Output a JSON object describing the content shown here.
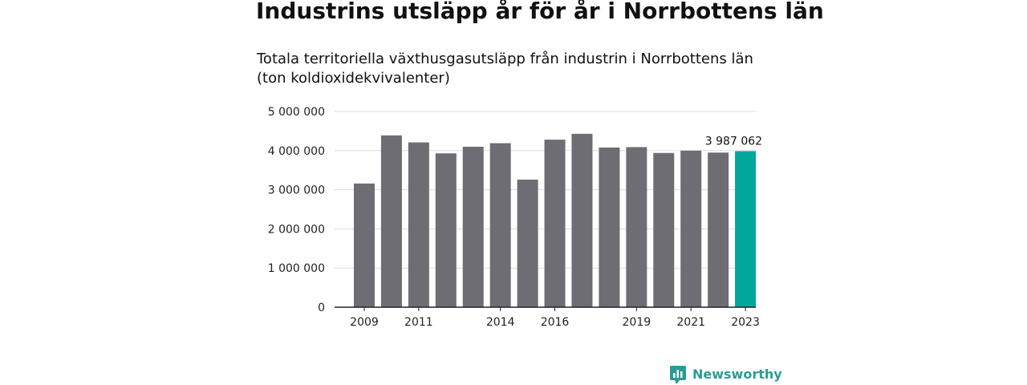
{
  "header": {
    "title": "Industrins utsläpp år för år i Norrbottens län",
    "subtitle": "Totala territoriella växthusgasutsläpp från industrin i Norrbottens län (ton koldioxidekvivalenter)"
  },
  "brand": {
    "name": "Newsworthy",
    "icon": "newsworthy-logo-icon",
    "color": "#2b9c93"
  },
  "chart_data": {
    "type": "bar",
    "title": "Industrins utsläpp år för år i Norrbottens län",
    "subtitle": "Totala territoriella växthusgasutsläpp från industrin i Norrbottens län (ton koldioxidekvivalenter)",
    "categories": [
      "2009",
      "2010",
      "2011",
      "2012",
      "2013",
      "2014",
      "2015",
      "2016",
      "2017",
      "2018",
      "2019",
      "2020",
      "2021",
      "2022",
      "2023"
    ],
    "values": [
      3160000,
      4390000,
      4210000,
      3930000,
      4100000,
      4190000,
      3260000,
      4280000,
      4430000,
      4080000,
      4090000,
      3940000,
      4000000,
      3950000,
      3987062
    ],
    "x_tick_labels": [
      "2009",
      "2011",
      "2014",
      "2016",
      "2019",
      "2021",
      "2023"
    ],
    "y_ticks": [
      0,
      1000000,
      2000000,
      3000000,
      4000000,
      5000000
    ],
    "y_tick_labels": [
      "0",
      "1 000 000",
      "2 000 000",
      "3 000 000",
      "4 000 000",
      "5 000 000"
    ],
    "ylim": [
      0,
      5000000
    ],
    "xlabel": "",
    "ylabel": "",
    "grid": true,
    "annotation": {
      "category": "2023",
      "text": "3 987 062"
    },
    "colors": {
      "bar": "#6e6d73",
      "highlight": "#00a79a",
      "grid": "#dcdcdc",
      "axis": "#222222"
    }
  }
}
